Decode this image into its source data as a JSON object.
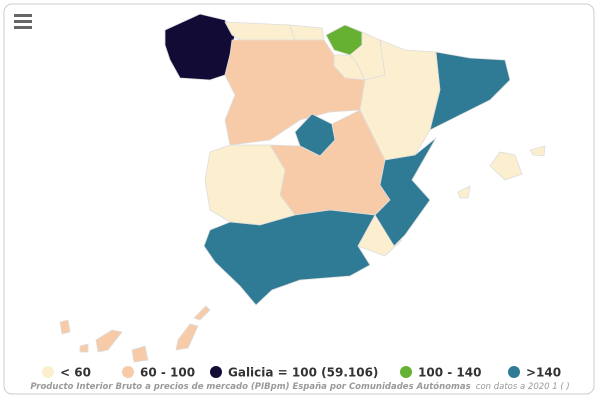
{
  "legend": [
    {
      "label": "< 60",
      "color": "#fcefcf"
    },
    {
      "label": "60 - 100",
      "color": "#f8cba8"
    },
    {
      "label": "Galicia = 100 (59.106)",
      "color": "#110b36"
    },
    {
      "label": "100 - 140",
      "color": "#66b032"
    },
    {
      "label": ">140",
      "color": "#2f7a94"
    }
  ],
  "caption": {
    "title": "Producto Interior Bruto a precios de mercado (PIBpm) España por Comunidades Autónomas",
    "subtitle": "con datos a 2020 1 ( )"
  }
}
